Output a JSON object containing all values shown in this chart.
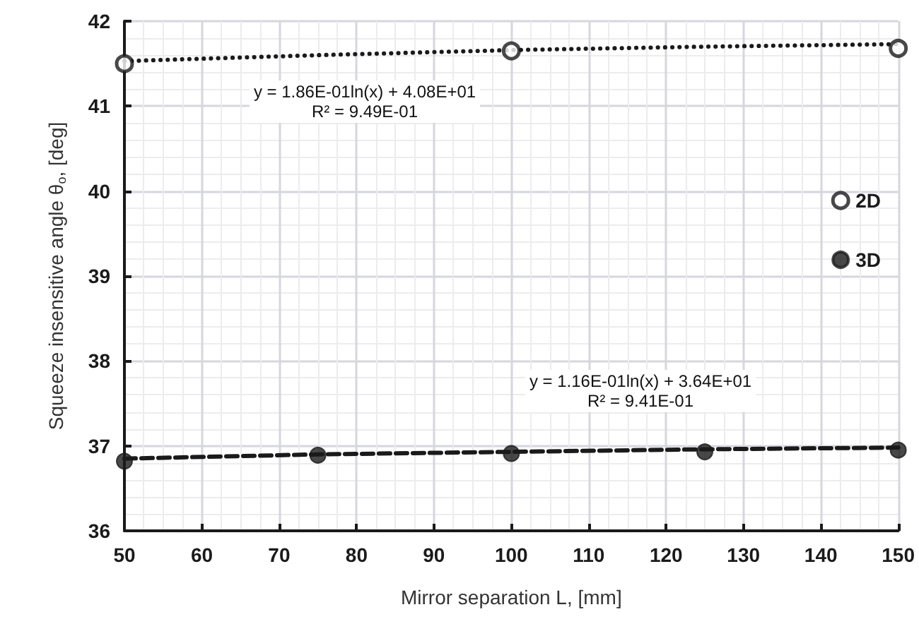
{
  "chart_data": {
    "type": "scatter",
    "xlabel": "Mirror separation L, [mm]",
    "ylabel": "Squeeze insensitive angle θ$_{o}$, [deg]",
    "xlim": [
      50,
      150
    ],
    "xticks": [
      50,
      60,
      70,
      80,
      90,
      100,
      110,
      120,
      130,
      140,
      150
    ],
    "ylim": [
      36,
      42
    ],
    "yticks": [
      36,
      37,
      38,
      39,
      40,
      41,
      42
    ],
    "grid": true,
    "legend": "right",
    "marker": "circle",
    "series": [
      {
        "name": "2D",
        "color": "#1a1a1a",
        "x": [
          50,
          100,
          150
        ],
        "values": [
          41.5,
          41.65,
          41.68
        ]
      },
      {
        "name": "3D",
        "color": "#1a1a1a",
        "x": [
          50,
          75,
          100,
          125,
          150
        ],
        "values": [
          36.82,
          36.89,
          36.91,
          36.93,
          36.95
        ]
      },
      {
        "type": "line",
        "color": "#1a1a1a",
        "line_style": "dotted",
        "marker": "none",
        "x": [
          50,
          75,
          100,
          125,
          150
        ],
        "values": [
          41.53,
          41.6,
          41.66,
          41.7,
          41.73
        ]
      },
      {
        "type": "line",
        "color": "#1a1a1a",
        "line_style": "dashed",
        "marker": "none",
        "x": [
          50,
          75,
          100,
          125,
          150
        ],
        "values": [
          36.85,
          36.9,
          36.93,
          36.96,
          36.98
        ]
      }
    ],
    "annotations": [
      "y = 1.86E-01ln(x) + 4.08E+01\nR² = 9.49E-01",
      "y = 1.16E-01ln(x) + 3.64E+01\nR² = 9.41E-01"
    ]
  }
}
